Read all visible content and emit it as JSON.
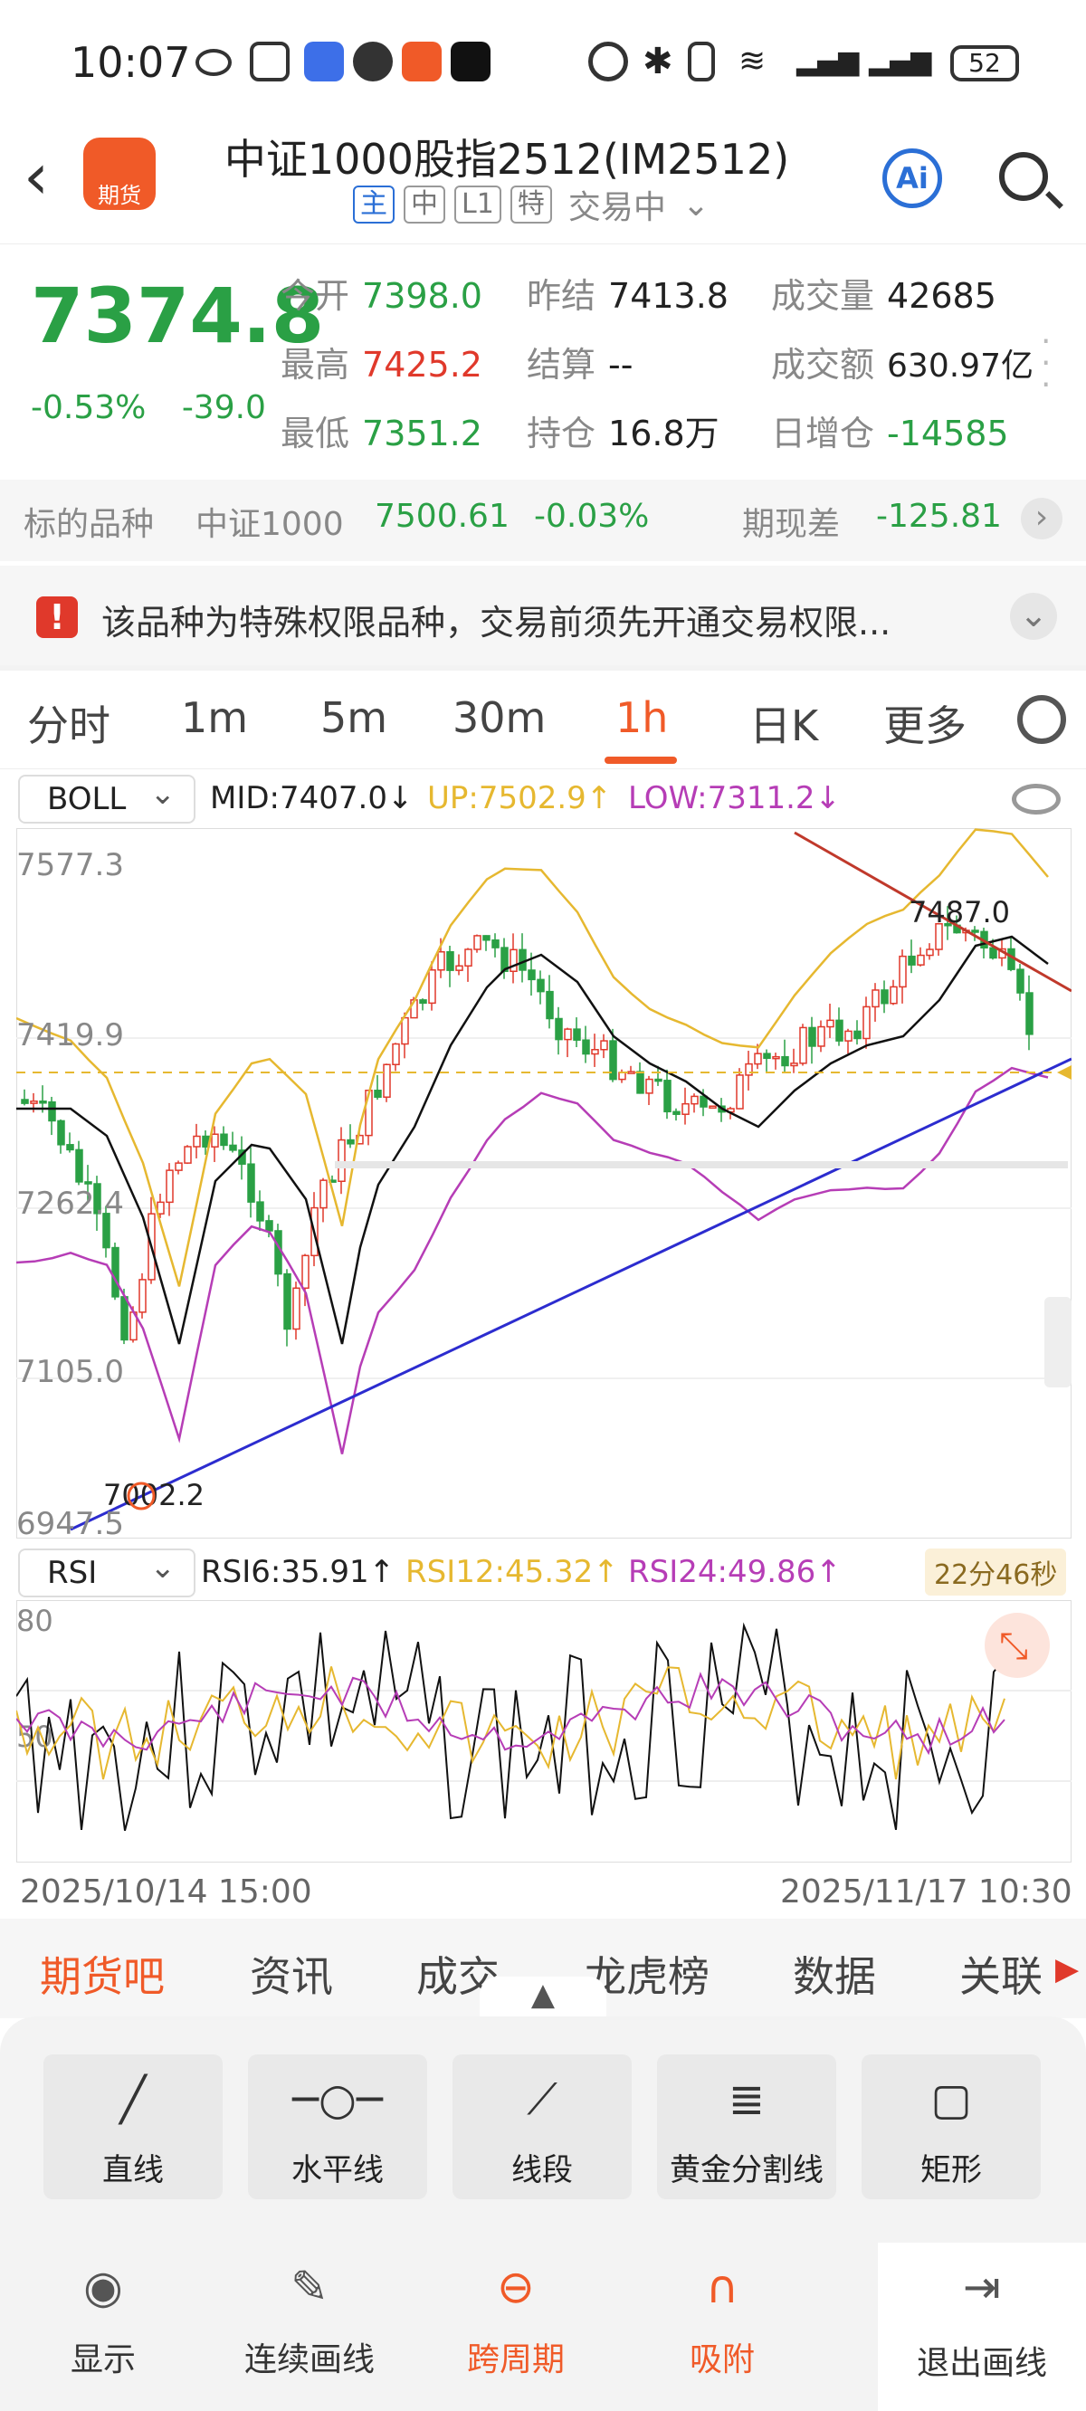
{
  "status": {
    "time": "10:07",
    "battery": "52"
  },
  "header": {
    "title": "中证1000股指2512(IM2512)",
    "logo": "期货",
    "tags": [
      "主",
      "中",
      "L1",
      "特"
    ],
    "trade_status": "交易中",
    "ai": "Ai"
  },
  "quote": {
    "price": "7374.8",
    "change_pct": "-0.53%",
    "change": "-39.0",
    "open_label": "今开",
    "open": "7398.0",
    "high_label": "最高",
    "high": "7425.2",
    "low_label": "最低",
    "low": "7351.2",
    "prev_label": "昨结",
    "prev": "7413.8",
    "settle_label": "结算",
    "settle": "--",
    "oi_label": "持仓",
    "oi": "16.8万",
    "vol_label": "成交量",
    "vol": "42685",
    "amt_label": "成交额",
    "amt": "630.97亿",
    "oi_chg_label": "日增仓",
    "oi_chg": "-14585"
  },
  "underlying": {
    "label": "标的品种",
    "name": "中证1000",
    "value": "7500.61",
    "pct": "-0.03%",
    "basis_label": "期现差",
    "basis": "-125.81"
  },
  "notice": "该品种为特殊权限品种，交易前须先开通交易权限...",
  "tabs": [
    "分时",
    "1m",
    "5m",
    "30m",
    "1h",
    "日K",
    "更多"
  ],
  "boll": {
    "selector": "BOLL",
    "mid": "MID:7407.0↓",
    "up": "UP:7502.9↑",
    "low": "LOW:7311.2↓"
  },
  "chart_labels": {
    "y1": "7577.3",
    "y2": "7419.9",
    "y3": "7262.4",
    "y4": "7105.0",
    "y5": "6947.5",
    "hi_mark": "7487.0",
    "lo_mark": "7002.2"
  },
  "rsi": {
    "selector": "RSI",
    "rsi6": "RSI6:35.91↑",
    "rsi12": "RSI12:45.32↑",
    "rsi24": "RSI24:49.86↑",
    "timer": "22分46秒",
    "y80": "80",
    "y50": "50"
  },
  "dates": {
    "start": "2025/10/14 15:00",
    "end": "2025/11/17 10:30"
  },
  "bottom_tabs": [
    "期货吧",
    "资讯",
    "成交",
    "龙虎榜",
    "数据",
    "关联"
  ],
  "tools": [
    "直线",
    "水平线",
    "线段",
    "黄金分割线",
    "矩形"
  ],
  "actions": [
    "显示",
    "连续画线",
    "跨周期",
    "吸附",
    "退出画线"
  ],
  "colors": {
    "up": "#e0392b",
    "down": "#2aa045",
    "accent": "#f05a28",
    "mid": "#111111",
    "upper": "#e6b830",
    "lower": "#b63db6",
    "trend": "#2c2ccf"
  }
}
